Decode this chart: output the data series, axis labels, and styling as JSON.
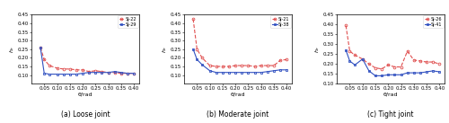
{
  "panel_a": {
    "title": "(a) Loose joint",
    "series": [
      {
        "label": "SJ-22",
        "color": "#e05050",
        "linestyle": "--",
        "marker": "o",
        "x": [
          0.035,
          0.05,
          0.07,
          0.1,
          0.125,
          0.15,
          0.175,
          0.2,
          0.225,
          0.25,
          0.275,
          0.3,
          0.325,
          0.35,
          0.375,
          0.4
        ],
        "y": [
          0.26,
          0.19,
          0.155,
          0.14,
          0.135,
          0.135,
          0.13,
          0.13,
          0.12,
          0.125,
          0.12,
          0.115,
          0.115,
          0.11,
          0.11,
          0.11
        ]
      },
      {
        "label": "SJ-29",
        "color": "#3050c0",
        "linestyle": "-",
        "marker": "s",
        "x": [
          0.035,
          0.05,
          0.07,
          0.1,
          0.125,
          0.15,
          0.175,
          0.2,
          0.225,
          0.25,
          0.275,
          0.3,
          0.325,
          0.35,
          0.375,
          0.4
        ],
        "y": [
          0.26,
          0.11,
          0.105,
          0.105,
          0.105,
          0.105,
          0.105,
          0.11,
          0.115,
          0.115,
          0.115,
          0.115,
          0.12,
          0.115,
          0.11,
          0.11
        ]
      }
    ],
    "xlabel": "θ/rad",
    "ylabel": "h_e",
    "xlim": [
      0,
      0.42
    ],
    "ylim": [
      0.05,
      0.45
    ],
    "yticks": [
      0.1,
      0.15,
      0.2,
      0.25,
      0.3,
      0.35,
      0.4,
      0.45
    ],
    "xticks": [
      0.05,
      0.1,
      0.15,
      0.2,
      0.25,
      0.3,
      0.35,
      0.4
    ]
  },
  "panel_b": {
    "title": "(b) Moderate joint",
    "series": [
      {
        "label": "SJ-21",
        "color": "#e05050",
        "linestyle": "--",
        "marker": "o",
        "x": [
          0.035,
          0.05,
          0.07,
          0.1,
          0.125,
          0.15,
          0.175,
          0.2,
          0.225,
          0.25,
          0.275,
          0.3,
          0.325,
          0.35,
          0.375,
          0.4
        ],
        "y": [
          0.425,
          0.25,
          0.2,
          0.155,
          0.15,
          0.15,
          0.15,
          0.155,
          0.155,
          0.155,
          0.15,
          0.155,
          0.155,
          0.155,
          0.185,
          0.19
        ]
      },
      {
        "label": "SJ-38",
        "color": "#3050c0",
        "linestyle": "-",
        "marker": "s",
        "x": [
          0.035,
          0.05,
          0.07,
          0.1,
          0.125,
          0.15,
          0.175,
          0.2,
          0.225,
          0.25,
          0.275,
          0.3,
          0.325,
          0.35,
          0.375,
          0.4
        ],
        "y": [
          0.25,
          0.19,
          0.16,
          0.125,
          0.115,
          0.115,
          0.115,
          0.115,
          0.115,
          0.115,
          0.115,
          0.115,
          0.12,
          0.125,
          0.13,
          0.13
        ]
      }
    ],
    "xlabel": "θ/rad",
    "ylabel": "h_e",
    "xlim": [
      0,
      0.42
    ],
    "ylim": [
      0.05,
      0.45
    ],
    "yticks": [
      0.1,
      0.15,
      0.2,
      0.25,
      0.3,
      0.35,
      0.4,
      0.45
    ],
    "xticks": [
      0.05,
      0.1,
      0.15,
      0.2,
      0.25,
      0.3,
      0.35,
      0.4
    ]
  },
  "panel_c": {
    "title": "(c) Tight joint",
    "series": [
      {
        "label": "SJ-26",
        "color": "#e05050",
        "linestyle": "--",
        "marker": "o",
        "x": [
          0.035,
          0.05,
          0.07,
          0.1,
          0.125,
          0.15,
          0.175,
          0.2,
          0.225,
          0.25,
          0.275,
          0.3,
          0.325,
          0.35,
          0.375,
          0.4
        ],
        "y": [
          0.395,
          0.265,
          0.245,
          0.225,
          0.2,
          0.18,
          0.175,
          0.195,
          0.185,
          0.185,
          0.265,
          0.22,
          0.215,
          0.21,
          0.21,
          0.2
        ]
      },
      {
        "label": "SJ-41",
        "color": "#3050c0",
        "linestyle": "-",
        "marker": "s",
        "x": [
          0.035,
          0.05,
          0.07,
          0.1,
          0.125,
          0.15,
          0.175,
          0.2,
          0.225,
          0.25,
          0.275,
          0.3,
          0.325,
          0.35,
          0.375,
          0.4
        ],
        "y": [
          0.27,
          0.215,
          0.195,
          0.225,
          0.165,
          0.14,
          0.14,
          0.145,
          0.145,
          0.145,
          0.155,
          0.155,
          0.155,
          0.16,
          0.165,
          0.16
        ]
      }
    ],
    "xlabel": "θ/rad",
    "ylabel": "h_e",
    "xlim": [
      0,
      0.42
    ],
    "ylim": [
      0.1,
      0.45
    ],
    "yticks": [
      0.1,
      0.15,
      0.2,
      0.25,
      0.3,
      0.35,
      0.4,
      0.45
    ],
    "xticks": [
      0.05,
      0.1,
      0.15,
      0.2,
      0.25,
      0.3,
      0.35,
      0.4
    ]
  },
  "fig_width": 5.0,
  "fig_height": 1.37,
  "dpi": 100
}
